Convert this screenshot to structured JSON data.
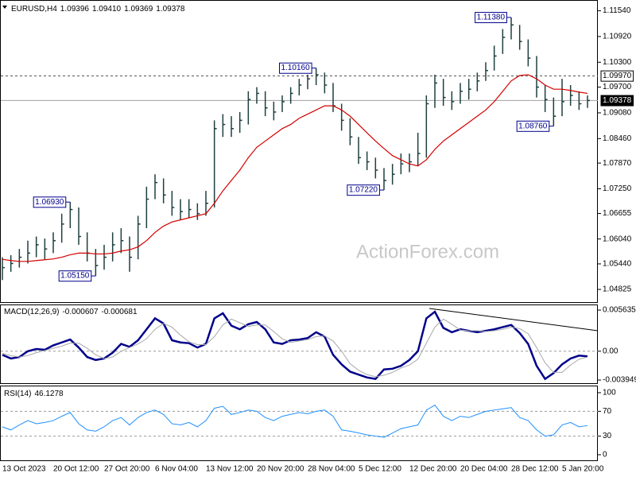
{
  "chart_data": [
    {
      "type": "ohlc",
      "title": "EURUSD,H4",
      "header_values": [
        "1.09396",
        "1.09410",
        "1.09369",
        "1.09378"
      ],
      "watermark": "ActionForex.com",
      "categories": [
        "13 Oct 2023",
        null,
        null,
        null,
        null,
        null,
        "20 Oct 12:00",
        null,
        null,
        null,
        null,
        null,
        "27 Oct 20:00",
        null,
        null,
        null,
        null,
        null,
        "6 Nov 04:00",
        null,
        null,
        null,
        null,
        null,
        "13 Nov 12:00",
        null,
        null,
        null,
        null,
        null,
        "20 Nov 20:00",
        null,
        null,
        null,
        null,
        null,
        "28 Nov 04:00",
        null,
        null,
        null,
        null,
        null,
        "5 Dec 12:00",
        null,
        null,
        null,
        null,
        null,
        "12 Dec 20:00",
        null,
        null,
        null,
        null,
        null,
        "20 Dec 04:00",
        null,
        null,
        null,
        null,
        null,
        "28 Dec 12:00",
        null,
        null,
        null,
        null,
        null,
        "5 Jan 20:00",
        null,
        null,
        null
      ],
      "high": [
        1.056,
        1.0565,
        1.058,
        1.06,
        1.061,
        1.0605,
        1.062,
        1.0665,
        1.0693,
        1.068,
        1.062,
        1.058,
        1.059,
        1.062,
        1.063,
        1.061,
        1.066,
        1.073,
        1.076,
        1.075,
        1.072,
        1.07,
        1.07,
        1.069,
        1.072,
        1.089,
        1.0905,
        1.09,
        1.091,
        1.096,
        1.097,
        1.096,
        1.0935,
        1.095,
        1.097,
        1.099,
        1.1,
        1.1016,
        1.1005,
        1.098,
        1.093,
        1.0895,
        1.085,
        1.0815,
        1.08,
        1.0775,
        1.0785,
        1.081,
        1.081,
        1.086,
        1.095,
        1.1,
        1.099,
        1.096,
        1.098,
        1.099,
        1.1005,
        1.103,
        1.107,
        1.111,
        1.1138,
        1.112,
        1.1085,
        1.1045,
        1.0975,
        1.0945,
        1.099,
        1.0975,
        1.096,
        1.095
      ],
      "low": [
        1.0505,
        1.0525,
        1.0535,
        1.0545,
        1.056,
        1.0555,
        1.057,
        1.0595,
        1.063,
        1.059,
        1.055,
        1.0515,
        1.053,
        1.055,
        1.057,
        1.0525,
        1.0555,
        1.063,
        1.07,
        1.069,
        1.066,
        1.065,
        1.0655,
        1.065,
        1.066,
        1.068,
        1.085,
        1.085,
        1.086,
        1.088,
        1.093,
        1.09,
        1.089,
        1.091,
        1.093,
        1.095,
        1.0965,
        1.0975,
        1.0955,
        1.091,
        1.0865,
        1.083,
        1.0785,
        1.077,
        1.075,
        1.0722,
        1.0735,
        1.076,
        1.0765,
        1.078,
        1.08,
        1.092,
        1.0925,
        1.0915,
        1.093,
        1.094,
        1.096,
        1.0985,
        1.101,
        1.105,
        1.1085,
        1.106,
        1.102,
        1.0945,
        1.091,
        1.0876,
        1.09,
        1.0925,
        1.0915,
        1.092
      ],
      "close": [
        1.0535,
        1.0545,
        1.056,
        1.057,
        1.059,
        1.058,
        1.06,
        1.064,
        1.0675,
        1.061,
        1.057,
        1.054,
        1.056,
        1.059,
        1.06,
        1.056,
        1.064,
        1.07,
        1.074,
        1.071,
        1.068,
        1.067,
        1.0675,
        1.0665,
        1.069,
        1.087,
        1.088,
        1.087,
        1.089,
        1.094,
        1.0955,
        1.092,
        1.091,
        1.0935,
        1.0955,
        1.0975,
        1.099,
        1.1,
        1.0975,
        1.0925,
        1.089,
        1.085,
        1.08,
        1.079,
        1.077,
        1.0745,
        1.076,
        1.0785,
        1.079,
        1.081,
        1.093,
        1.098,
        1.0945,
        1.0935,
        1.096,
        1.0965,
        1.0985,
        1.101,
        1.1045,
        1.109,
        1.112,
        1.108,
        1.104,
        1.097,
        1.094,
        1.09,
        1.0935,
        1.095,
        1.093,
        1.09378
      ],
      "bar_color": "#1f3f3f",
      "ma": {
        "color": "#d40000",
        "values": [
          1.0555,
          1.0552,
          1.055,
          1.055,
          1.0552,
          1.0554,
          1.0556,
          1.056,
          1.0566,
          1.057,
          1.057,
          1.0568,
          1.0568,
          1.057,
          1.0575,
          1.0578,
          1.0585,
          1.06,
          1.062,
          1.0635,
          1.0645,
          1.065,
          1.0655,
          1.066,
          1.0665,
          1.069,
          1.072,
          1.0745,
          1.077,
          1.08,
          1.0825,
          1.084,
          1.0855,
          1.087,
          1.088,
          1.0895,
          1.0905,
          1.0915,
          1.0925,
          1.0925,
          1.0915,
          1.09,
          1.088,
          1.086,
          1.084,
          1.0822,
          1.0805,
          1.0795,
          1.0785,
          1.078,
          1.0795,
          1.082,
          1.084,
          1.0855,
          1.087,
          1.0885,
          1.09,
          1.0915,
          1.0935,
          1.096,
          1.0985,
          1.0998,
          1.1,
          1.099,
          1.0975,
          1.0965,
          1.0965,
          1.0962,
          1.0958,
          1.0955
        ]
      },
      "annotations": [
        {
          "value": 1.0693,
          "label": "1.06930"
        },
        {
          "value": 1.0515,
          "label": "1.05150"
        },
        {
          "value": 1.1016,
          "label": "1.10160"
        },
        {
          "value": 1.0722,
          "label": "1.07220"
        },
        {
          "value": 1.1138,
          "label": "1.11380"
        },
        {
          "value": 1.0876,
          "label": "1.08760"
        }
      ],
      "levels": [
        {
          "value": 1.0997,
          "label": "1.09970",
          "style": "dashed"
        },
        {
          "value": 1.09378,
          "label": "1.09378",
          "style": "current"
        }
      ],
      "ylim": [
        1.045,
        1.118
      ],
      "yticks": [
        {
          "value": 1.1154,
          "label": "1.11540"
        },
        {
          "value": 1.1092,
          "label": "1.10920"
        },
        {
          "value": 1.103,
          "label": "1.10300"
        },
        {
          "value": 1.097,
          "label": "1.09700"
        },
        {
          "value": 1.0908,
          "label": "1.09080"
        },
        {
          "value": 1.0846,
          "label": "1.08460"
        },
        {
          "value": 1.0787,
          "label": "1.07870"
        },
        {
          "value": 1.0725,
          "label": "1.07250"
        },
        {
          "value": 1.06655,
          "label": "1.06655"
        },
        {
          "value": 1.0604,
          "label": "1.06040"
        },
        {
          "value": 1.0544,
          "label": "1.05440"
        },
        {
          "value": 1.04825,
          "label": "1.04825"
        }
      ]
    },
    {
      "type": "macd",
      "title": "MACD(12,26,9)",
      "header_values": [
        "-0.000607",
        "-0.000681"
      ],
      "series": [
        {
          "color": "#00008b",
          "values": [
            -0.0005,
            -0.001,
            -0.0008,
            0.0,
            0.0003,
            0.0002,
            0.0008,
            0.0012,
            0.0016,
            0.0005,
            -0.0008,
            -0.0012,
            -0.001,
            -0.0002,
            0.001,
            0.0006,
            0.0015,
            0.003,
            0.0045,
            0.0038,
            0.0015,
            0.0012,
            0.0011,
            0.0005,
            0.001,
            0.0045,
            0.0052,
            0.0035,
            0.003,
            0.0037,
            0.004,
            0.003,
            0.0012,
            0.001,
            0.0015,
            0.0016,
            0.0018,
            0.0026,
            0.002,
            -0.0005,
            -0.0018,
            -0.0028,
            -0.0032,
            -0.0036,
            -0.0038,
            -0.0025,
            -0.0024,
            -0.002,
            -0.0012,
            0.0,
            0.0045,
            0.0054,
            0.0032,
            0.0026,
            0.003,
            0.0028,
            0.0026,
            0.0028,
            0.003,
            0.0033,
            0.0036,
            0.0025,
            0.001,
            -0.002,
            -0.0038,
            -0.003,
            -0.0018,
            -0.001,
            -0.0006,
            -0.0007
          ]
        },
        {
          "color": "#a9a9a9",
          "values": [
            -0.0003,
            -0.0006,
            -0.0008,
            -0.0006,
            -0.0002,
            0.0001,
            0.0004,
            0.0007,
            0.0011,
            0.0011,
            0.0004,
            -0.0005,
            -0.001,
            -0.0008,
            0.0,
            0.0005,
            0.001,
            0.0017,
            0.003,
            0.0038,
            0.0033,
            0.0022,
            0.0013,
            0.0009,
            0.0009,
            0.002,
            0.0036,
            0.0044,
            0.0039,
            0.0034,
            0.0036,
            0.0036,
            0.0027,
            0.0017,
            0.0012,
            0.0014,
            0.0016,
            0.002,
            0.0021,
            0.0014,
            0.0,
            -0.0017,
            -0.0026,
            -0.0032,
            -0.0035,
            -0.0033,
            -0.0029,
            -0.0023,
            -0.0019,
            -0.0011,
            0.0011,
            0.0033,
            0.0044,
            0.0037,
            0.0029,
            0.0028,
            0.0028,
            0.0027,
            0.0028,
            0.003,
            0.0033,
            0.0031,
            0.0024,
            0.0005,
            -0.0016,
            -0.0029,
            -0.0029,
            -0.0019,
            -0.0011,
            -0.0008
          ]
        }
      ],
      "levels": [
        0
      ],
      "ylim": [
        -0.00449,
        0.0064
      ],
      "yticks": [
        0.005635,
        {
          "value": 0,
          "label": "0.00"
        },
        -0.003949
      ]
    },
    {
      "type": "line",
      "title": "RSI(14)",
      "header_values": [
        "46.1278"
      ],
      "series": [
        {
          "color": "#1e90ff",
          "values": [
            45,
            40,
            48,
            55,
            50,
            52,
            55,
            62,
            68,
            50,
            40,
            38,
            45,
            55,
            60,
            48,
            60,
            68,
            72,
            65,
            50,
            48,
            52,
            45,
            55,
            75,
            78,
            65,
            68,
            72,
            70,
            60,
            55,
            62,
            65,
            68,
            66,
            70,
            72,
            62,
            40,
            38,
            35,
            32,
            30,
            28,
            35,
            42,
            45,
            48,
            72,
            80,
            62,
            55,
            62,
            60,
            65,
            70,
            72,
            74,
            76,
            60,
            55,
            40,
            30,
            32,
            48,
            52,
            45,
            47
          ]
        }
      ],
      "levels": [
        70,
        30
      ],
      "ylim": [
        -10.3,
        111.5
      ],
      "yticks": [
        100,
        70,
        30,
        0
      ]
    }
  ]
}
